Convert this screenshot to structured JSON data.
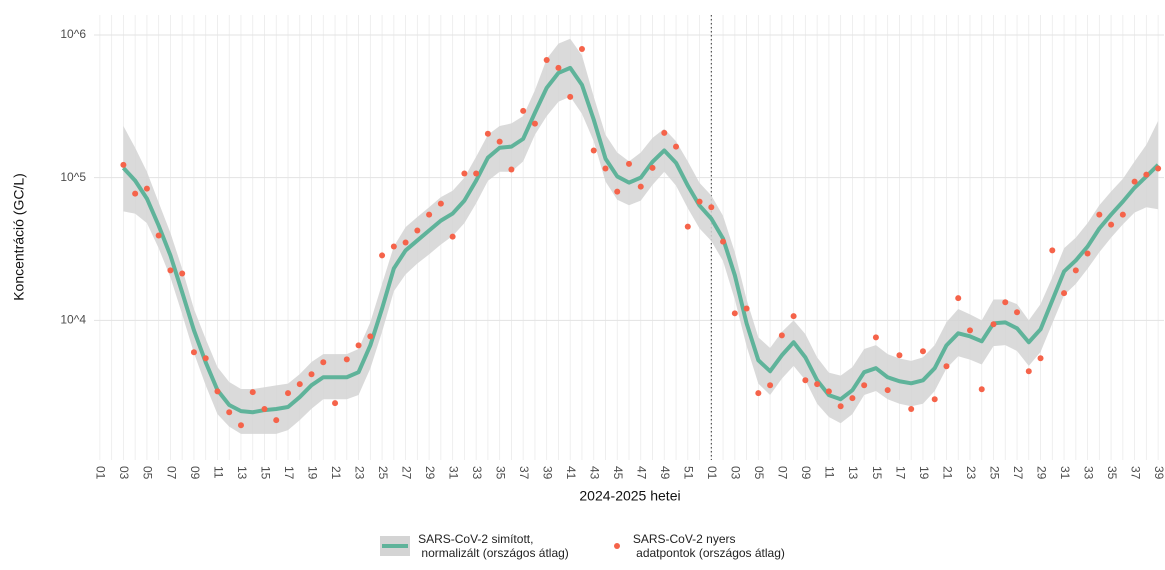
{
  "chart_data": {
    "type": "line",
    "x_label": "2024-2025 hetei",
    "y_label": "Koncentráció (GC/L)",
    "y_scale": "log",
    "grid": true,
    "legend_position": "bottom",
    "categories": [
      "01",
      null,
      "03",
      null,
      "05",
      null,
      "07",
      null,
      "09",
      null,
      "11",
      null,
      "13",
      null,
      "15",
      null,
      "17",
      null,
      "19",
      null,
      "21",
      null,
      "23",
      null,
      "25",
      null,
      "27",
      null,
      "29",
      null,
      "31",
      null,
      "33",
      null,
      "35",
      null,
      "37",
      null,
      "39",
      null,
      "41",
      null,
      "43",
      null,
      "45",
      null,
      "47",
      null,
      "49",
      null,
      "51",
      null,
      "01",
      null,
      "03",
      null,
      "05",
      null,
      "07",
      null,
      "09",
      null,
      "11",
      null,
      "13",
      null,
      "15",
      null,
      "17",
      null,
      "19",
      null,
      "21",
      null,
      "23",
      null,
      "25",
      null,
      "27",
      null,
      "29",
      null,
      "31",
      null,
      "33",
      null,
      "35",
      null,
      "37",
      null,
      "39"
    ],
    "ylim": [
      1050,
      1380000
    ],
    "yticks": [
      {
        "value": 10000,
        "label": "10^4"
      },
      {
        "value": 100000,
        "label": "10^5"
      },
      {
        "value": 1000000,
        "label": "10^6"
      }
    ],
    "series": [
      {
        "name": "SARS-CoV-2 simított,\n normalizált (országos átlag)",
        "color": "#5fb39a",
        "band_color": "#d4d4d4",
        "values": [
          null,
          null,
          117000,
          95300,
          71300,
          46100,
          28500,
          15700,
          8510,
          5080,
          3240,
          2550,
          2310,
          2270,
          2350,
          2390,
          2470,
          2900,
          3510,
          3990,
          3990,
          3990,
          4330,
          6680,
          12100,
          23100,
          30900,
          36300,
          42600,
          50000,
          56000,
          69000,
          95300,
          138000,
          162000,
          165000,
          187000,
          285000,
          426000,
          542000,
          588000,
          447000,
          255000,
          136000,
          102000,
          92300,
          100000,
          129000,
          155000,
          127000,
          87900,
          63700,
          51600,
          37400,
          20700,
          9530,
          5250,
          4400,
          5690,
          7020,
          5500,
          3800,
          2990,
          2800,
          3240,
          4330,
          4620,
          3990,
          3740,
          3620,
          3800,
          4620,
          6680,
          8110,
          7720,
          7130,
          9530,
          9680,
          8790,
          7020,
          8650,
          13800,
          22000,
          26300,
          32900,
          44000,
          55100,
          67900,
          85100,
          102000,
          123000
        ],
        "upper": [
          null,
          null,
          230000,
          162000,
          110000,
          67000,
          41000,
          23000,
          12000,
          7400,
          4700,
          3700,
          3300,
          3300,
          3400,
          3500,
          3600,
          4200,
          5100,
          5800,
          5800,
          5800,
          6300,
          9700,
          18000,
          33000,
          45000,
          53000,
          62000,
          73000,
          81000,
          100000,
          140000,
          200000,
          230000,
          240000,
          270000,
          410000,
          680000,
          870000,
          940000,
          720000,
          370000,
          200000,
          150000,
          130000,
          150000,
          190000,
          220000,
          180000,
          130000,
          92000,
          75000,
          54000,
          30000,
          14000,
          7600,
          6400,
          8300,
          10000,
          8000,
          5500,
          4300,
          4100,
          4700,
          6300,
          6700,
          5800,
          5400,
          5200,
          5500,
          6700,
          9700,
          12000,
          11000,
          10000,
          14000,
          14000,
          13000,
          10000,
          13000,
          20000,
          32000,
          38000,
          48000,
          64000,
          80000,
          98000,
          130000,
          170000,
          250000
        ],
        "lower": [
          null,
          null,
          58000,
          56000,
          48000,
          32000,
          20000,
          11000,
          5900,
          3500,
          2200,
          1800,
          1600,
          1600,
          1600,
          1600,
          1700,
          2000,
          2400,
          2800,
          2800,
          2800,
          3000,
          4600,
          8300,
          16000,
          21000,
          25000,
          29000,
          34000,
          39000,
          48000,
          66000,
          95000,
          110000,
          110000,
          130000,
          200000,
          270000,
          340000,
          370000,
          280000,
          180000,
          94000,
          70000,
          64000,
          69000,
          89000,
          110000,
          88000,
          61000,
          44000,
          36000,
          26000,
          14000,
          6600,
          3600,
          3000,
          3900,
          4800,
          3800,
          2600,
          2100,
          1900,
          2200,
          3000,
          3200,
          2800,
          2600,
          2500,
          2600,
          3200,
          4600,
          5600,
          5300,
          4900,
          6600,
          6700,
          6100,
          4800,
          6000,
          9500,
          15000,
          18000,
          23000,
          30000,
          38000,
          47000,
          57000,
          62000,
          60000
        ]
      },
      {
        "name": "SARS-CoV-2 nyers\n adatpontok (országos átlag)",
        "color": "#f5634a",
        "values": [
          null,
          null,
          123000,
          77300,
          83800,
          39300,
          22400,
          21300,
          5980,
          5420,
          3180,
          2270,
          1840,
          3140,
          2390,
          2000,
          3090,
          3570,
          4190,
          5080,
          2630,
          5330,
          6680,
          7720,
          28500,
          32900,
          35100,
          42600,
          55100,
          65800,
          38600,
          107000,
          107000,
          203000,
          179000,
          114000,
          294000,
          239000,
          668000,
          588000,
          368000,
          798000,
          155000,
          116000,
          79800,
          125000,
          86500,
          117000,
          206000,
          165000,
          45400,
          67900,
          62000,
          35600,
          11200,
          12100,
          3090,
          3510,
          7850,
          10700,
          3800,
          3570,
          3180,
          2500,
          2850,
          3510,
          7600,
          3240,
          5690,
          2390,
          6070,
          2800,
          4770,
          14300,
          8510,
          3290,
          9380,
          13400,
          11400,
          4400,
          5420,
          30900,
          15500,
          22400,
          29400,
          55100,
          46900,
          55100,
          93800,
          105000,
          116000
        ]
      }
    ]
  }
}
